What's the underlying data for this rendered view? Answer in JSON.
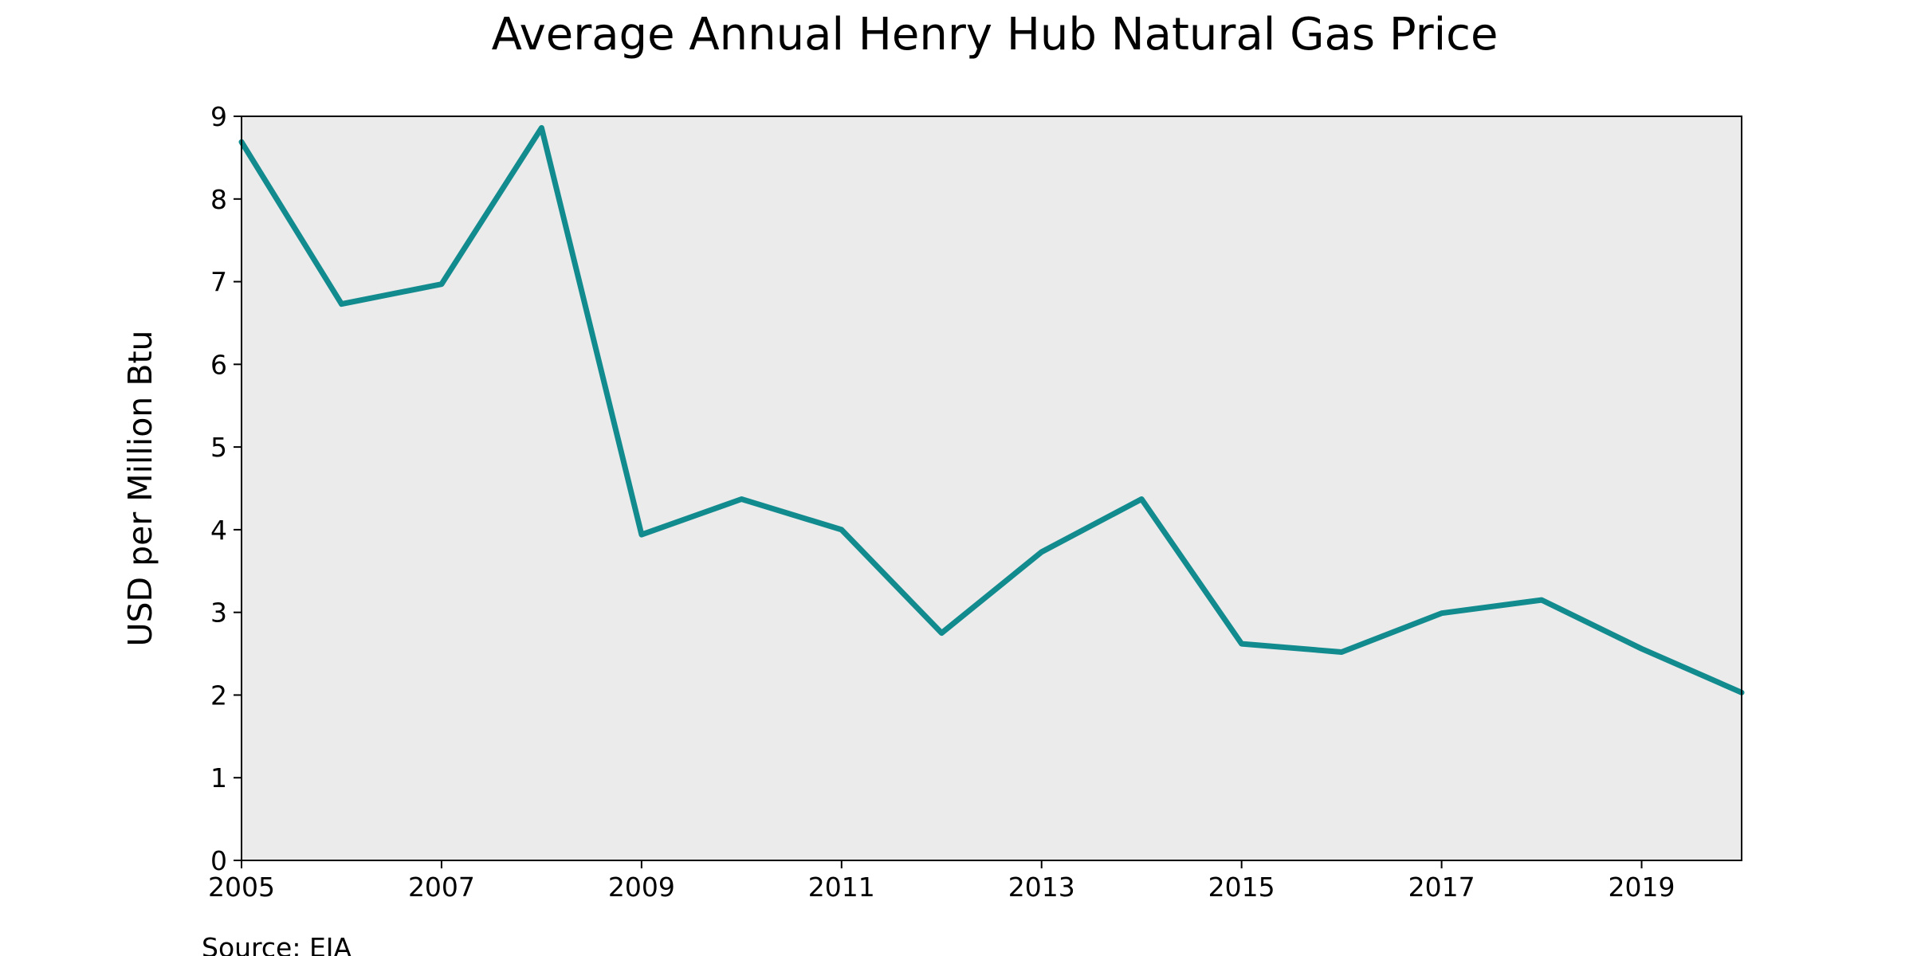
{
  "chart_data": {
    "type": "line",
    "title": "Average Annual Henry Hub Natural Gas Price",
    "xlabel": "",
    "ylabel": "USD per Million Btu",
    "source": "Source: EIA",
    "xlim": [
      2005,
      2020
    ],
    "ylim": [
      0,
      9
    ],
    "x_ticks": [
      2005,
      2007,
      2009,
      2011,
      2013,
      2015,
      2017,
      2019
    ],
    "y_ticks": [
      0,
      1,
      2,
      3,
      4,
      5,
      6,
      7,
      8,
      9
    ],
    "grid": false,
    "legend": "none",
    "plot_background": "#ebebeb",
    "series": [
      {
        "color": "#128b8f",
        "x": [
          2005,
          2006,
          2007,
          2008,
          2009,
          2010,
          2011,
          2012,
          2013,
          2014,
          2015,
          2016,
          2017,
          2018,
          2019,
          2020
        ],
        "y": [
          8.69,
          6.73,
          6.97,
          8.86,
          3.94,
          4.37,
          4.0,
          2.75,
          3.73,
          4.37,
          2.62,
          2.52,
          2.99,
          3.15,
          2.56,
          2.03
        ]
      }
    ]
  }
}
